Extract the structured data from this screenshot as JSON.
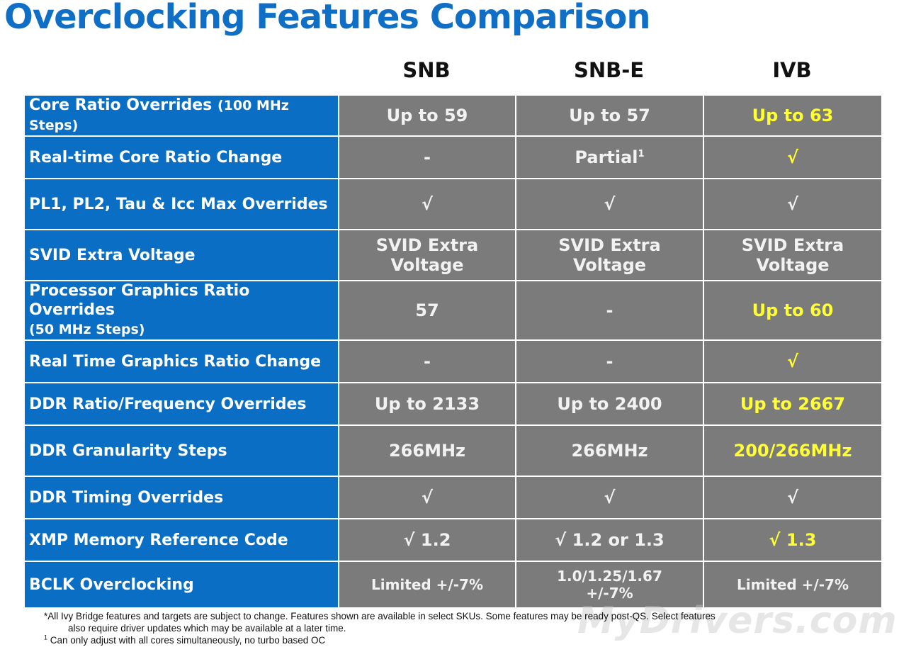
{
  "title": "Overclocking Features Comparison",
  "columns": [
    "SNB",
    "SNB-E",
    "IVB"
  ],
  "rows": [
    {
      "feature": "Core Ratio Overrides",
      "feature_sub": "(100 MHz Steps)",
      "snb": "Up to 59",
      "snbe": "Up to 57",
      "ivb": "Up to 63",
      "ivb_highlight": true
    },
    {
      "feature": "Real-time Core Ratio Change",
      "feature_sub": "",
      "snb": "-",
      "snbe": "Partial",
      "snbe_note": "1",
      "ivb": "√",
      "ivb_highlight": true
    },
    {
      "feature": "PL1, PL2, Tau & Icc Max Overrides",
      "feature_sub": "",
      "snb": "√",
      "snbe": "√",
      "ivb": "√",
      "ivb_highlight": false
    },
    {
      "feature": "SVID Extra Voltage",
      "feature_sub": "",
      "snb": "SVID Extra Voltage",
      "snbe": "SVID Extra Voltage",
      "ivb": "SVID Extra Voltage",
      "ivb_highlight": false
    },
    {
      "feature": "Processor Graphics Ratio Overrides",
      "feature_sub": "(50 MHz Steps)",
      "snb": "57",
      "snbe": "-",
      "ivb": "Up to 60",
      "ivb_highlight": true
    },
    {
      "feature": "Real Time Graphics Ratio Change",
      "feature_sub": "",
      "snb": "-",
      "snbe": "-",
      "ivb": "√",
      "ivb_highlight": true
    },
    {
      "feature": "DDR Ratio/Frequency Overrides",
      "feature_sub": "",
      "snb": "Up to 2133",
      "snbe": "Up to 2400",
      "ivb": "Up to 2667",
      "ivb_highlight": true
    },
    {
      "feature": "DDR Granularity Steps",
      "feature_sub": "",
      "snb": "266MHz",
      "snbe": "266MHz",
      "ivb": "200/266MHz",
      "ivb_highlight": true
    },
    {
      "feature": "DDR Timing Overrides",
      "feature_sub": "",
      "snb": "√",
      "snbe": "√",
      "ivb": "√",
      "ivb_highlight": false
    },
    {
      "feature": "XMP Memory Reference Code",
      "feature_sub": "",
      "snb": "√ 1.2",
      "snbe": "√ 1.2 or 1.3",
      "ivb": "√ 1.3",
      "ivb_highlight": true
    },
    {
      "feature": "BCLK Overclocking",
      "feature_sub": "",
      "snb": "Limited +/-7%",
      "snbe": "1.0/1.25/1.67",
      "snbe_line2": "+/-7%",
      "ivb": "Limited +/-7%",
      "ivb_highlight": false
    }
  ],
  "footnotes": {
    "line1": "*All Ivy Bridge features and targets are subject to change.  Features shown are available in select SKUs.  Some features may be ready post-QS.  Select features",
    "line2": "also require driver updates which may be available at a later time.",
    "note_marker": "1",
    "line3": "Can only adjust with all cores  simultaneously, no turbo based OC"
  },
  "watermark": "MyDrivers.com",
  "colors": {
    "title": "#0f6fc6",
    "feature_bg": "#0a6ec4",
    "value_bg": "#7b7b7b",
    "highlight": "#ffff33"
  }
}
